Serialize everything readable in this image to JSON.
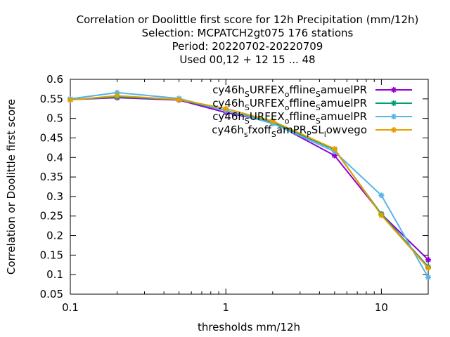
{
  "chart_data": {
    "type": "line",
    "title_lines": [
      "Correlation or Doolittle first score  for 12h Precipitation (mm/12h)",
      "Selection: MCPATCH2gt075    176 stations",
      "Period: 20220702-20220709",
      "Used  00,12  + 12 15 ... 48"
    ],
    "xlabel": "thresholds mm/12h",
    "ylabel": "Correlation or Doolittle first score",
    "x_scale": "log",
    "xlim": [
      0.1,
      20
    ],
    "ylim": [
      0.05,
      0.6
    ],
    "x_ticks": [
      0.1,
      1,
      10
    ],
    "x_tick_labels": [
      "0.1",
      "1",
      "10"
    ],
    "y_ticks": [
      0.05,
      0.1,
      0.15,
      0.2,
      0.25,
      0.3,
      0.35,
      0.4,
      0.45,
      0.5,
      0.55,
      0.6
    ],
    "y_tick_labels": [
      "0.05",
      "0.1",
      "0.15",
      "0.2",
      "0.25",
      "0.3",
      "0.35",
      "0.4",
      "0.45",
      "0.5",
      "0.55",
      "0.6"
    ],
    "grid": false,
    "legend_position": "top-right",
    "series": [
      {
        "name": "cy46h_SURFEX_offline_SamuelPR",
        "name_parts": [
          [
            "cy46h",
            ""
          ],
          [
            "S",
            "sub"
          ],
          [
            "URFEX",
            ""
          ],
          [
            "o",
            "sub"
          ],
          [
            "ffline",
            ""
          ],
          [
            "S",
            "sub"
          ],
          [
            "amuelPR",
            ""
          ]
        ],
        "color": "#9400d3",
        "x": [
          0.1,
          0.2,
          0.5,
          1,
          2,
          5,
          10,
          20
        ],
        "y": [
          0.548,
          0.553,
          0.547,
          0.515,
          0.49,
          0.405,
          0.255,
          0.138
        ]
      },
      {
        "name": "cy46h_SURFEX_offline_SamuelPR",
        "name_parts": [
          [
            "cy46h",
            ""
          ],
          [
            "S",
            "sub"
          ],
          [
            "URFEX",
            ""
          ],
          [
            "o",
            "sub"
          ],
          [
            "ffline",
            ""
          ],
          [
            "S",
            "sub"
          ],
          [
            "amuelPR",
            ""
          ]
        ],
        "color": "#009e73",
        "x": [
          0.1,
          0.2,
          0.5,
          1,
          2,
          5,
          10,
          20
        ],
        "y": [
          0.548,
          0.555,
          0.548,
          0.52,
          0.49,
          0.42,
          0.255,
          0.12
        ]
      },
      {
        "name": "cy46h_SURFEX_offline_SamuelPR",
        "name_parts": [
          [
            "cy46h",
            ""
          ],
          [
            "S",
            "sub"
          ],
          [
            "URFEX",
            ""
          ],
          [
            "o",
            "sub"
          ],
          [
            "ffline",
            ""
          ],
          [
            "S",
            "sub"
          ],
          [
            "amuelPR",
            ""
          ]
        ],
        "color": "#56b4e9",
        "x": [
          0.1,
          0.2,
          0.5,
          1,
          2,
          5,
          10,
          20
        ],
        "y": [
          0.55,
          0.566,
          0.551,
          0.52,
          0.487,
          0.415,
          0.303,
          0.093
        ]
      },
      {
        "name": "cy46h_sfxoff_SamPR_PSL_lowvego",
        "name_parts": [
          [
            "cy46h",
            ""
          ],
          [
            "s",
            "sub"
          ],
          [
            "fxoff",
            ""
          ],
          [
            "S",
            "sub"
          ],
          [
            "amPR",
            ""
          ],
          [
            "P",
            "sub"
          ],
          [
            "SL",
            ""
          ],
          [
            "l",
            "sub"
          ],
          [
            "owvego",
            ""
          ]
        ],
        "color": "#e69f00",
        "x": [
          0.1,
          0.2,
          0.5,
          1,
          2,
          5,
          10,
          20
        ],
        "y": [
          0.547,
          0.558,
          0.548,
          0.525,
          0.493,
          0.422,
          0.252,
          0.117
        ]
      }
    ]
  }
}
